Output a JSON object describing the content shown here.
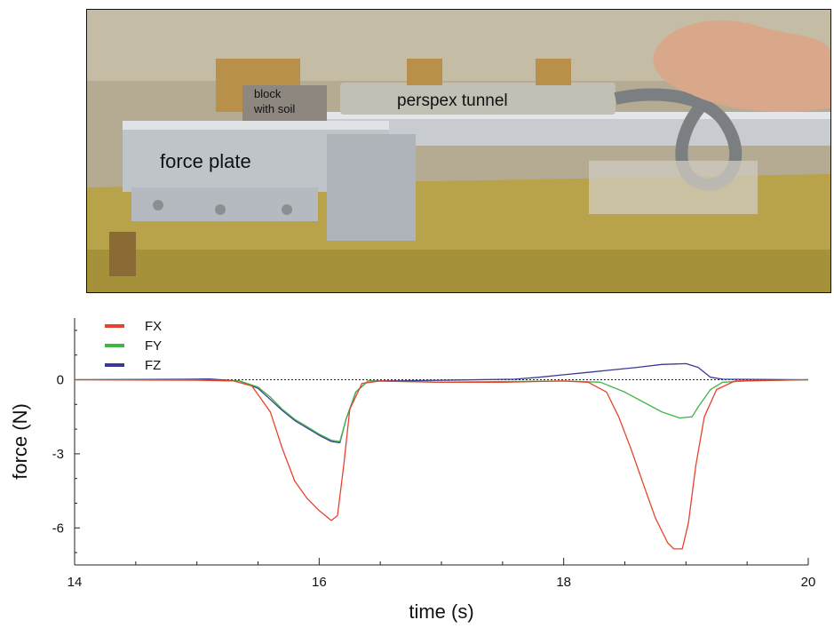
{
  "photo": {
    "labels": {
      "block_line1": "block",
      "block_line2": "with soil",
      "tunnel": "perspex tunnel",
      "force_plate": "force plate"
    }
  },
  "chart_data": {
    "type": "line",
    "xlabel": "time (s)",
    "ylabel": "force (N)",
    "xlim": [
      14,
      20
    ],
    "ylim": [
      -7.5,
      2.5
    ],
    "xticks": [
      14,
      16,
      18,
      20
    ],
    "yticks": [
      0,
      -3,
      -6
    ],
    "grid": false,
    "zero_line": "dashed",
    "legend_position": "top-left",
    "series": [
      {
        "name": "FX",
        "color": "#e8432a",
        "points": [
          [
            14,
            0
          ],
          [
            15,
            -0.02
          ],
          [
            15.3,
            -0.05
          ],
          [
            15.45,
            -0.25
          ],
          [
            15.6,
            -1.3
          ],
          [
            15.7,
            -2.8
          ],
          [
            15.8,
            -4.1
          ],
          [
            15.9,
            -4.8
          ],
          [
            16.0,
            -5.3
          ],
          [
            16.1,
            -5.7
          ],
          [
            16.15,
            -5.5
          ],
          [
            16.2,
            -3.5
          ],
          [
            16.25,
            -1.2
          ],
          [
            16.35,
            -0.15
          ],
          [
            16.5,
            -0.05
          ],
          [
            17,
            -0.1
          ],
          [
            17.5,
            -0.1
          ],
          [
            18.0,
            -0.05
          ],
          [
            18.2,
            -0.1
          ],
          [
            18.35,
            -0.5
          ],
          [
            18.45,
            -1.5
          ],
          [
            18.55,
            -2.8
          ],
          [
            18.65,
            -4.2
          ],
          [
            18.75,
            -5.6
          ],
          [
            18.85,
            -6.6
          ],
          [
            18.9,
            -6.85
          ],
          [
            18.97,
            -6.85
          ],
          [
            19.02,
            -5.8
          ],
          [
            19.08,
            -3.5
          ],
          [
            19.15,
            -1.5
          ],
          [
            19.25,
            -0.4
          ],
          [
            19.4,
            -0.05
          ],
          [
            20,
            0
          ]
        ]
      },
      {
        "name": "FY",
        "color": "#3fb447",
        "points": [
          [
            14,
            0
          ],
          [
            15,
            0
          ],
          [
            15.35,
            -0.05
          ],
          [
            15.5,
            -0.3
          ],
          [
            15.6,
            -0.7
          ],
          [
            15.7,
            -1.2
          ],
          [
            15.8,
            -1.6
          ],
          [
            15.9,
            -1.9
          ],
          [
            16.0,
            -2.2
          ],
          [
            16.1,
            -2.45
          ],
          [
            16.17,
            -2.5
          ],
          [
            16.22,
            -1.6
          ],
          [
            16.3,
            -0.5
          ],
          [
            16.4,
            -0.05
          ],
          [
            17,
            -0.1
          ],
          [
            18.0,
            -0.05
          ],
          [
            18.3,
            -0.1
          ],
          [
            18.5,
            -0.5
          ],
          [
            18.65,
            -0.9
          ],
          [
            18.8,
            -1.3
          ],
          [
            18.95,
            -1.55
          ],
          [
            19.05,
            -1.5
          ],
          [
            19.1,
            -1.1
          ],
          [
            19.2,
            -0.4
          ],
          [
            19.3,
            -0.1
          ],
          [
            19.5,
            -0.05
          ],
          [
            20,
            0
          ]
        ]
      },
      {
        "name": "FZ",
        "color": "#3a3a96",
        "points": [
          [
            14,
            0
          ],
          [
            14.9,
            0.02
          ],
          [
            15.1,
            0.03
          ],
          [
            15.35,
            -0.05
          ],
          [
            15.5,
            -0.35
          ],
          [
            15.6,
            -0.8
          ],
          [
            15.7,
            -1.25
          ],
          [
            15.8,
            -1.65
          ],
          [
            15.9,
            -1.95
          ],
          [
            16.0,
            -2.25
          ],
          [
            16.1,
            -2.5
          ],
          [
            16.17,
            -2.55
          ],
          [
            16.22,
            -1.6
          ],
          [
            16.3,
            -0.5
          ],
          [
            16.4,
            -0.05
          ],
          [
            17,
            -0.02
          ],
          [
            17.6,
            0.02
          ],
          [
            17.8,
            0.1
          ],
          [
            18.0,
            0.2
          ],
          [
            18.2,
            0.3
          ],
          [
            18.4,
            0.4
          ],
          [
            18.6,
            0.5
          ],
          [
            18.8,
            0.62
          ],
          [
            19.0,
            0.65
          ],
          [
            19.1,
            0.5
          ],
          [
            19.2,
            0.1
          ],
          [
            19.3,
            0.02
          ],
          [
            20,
            0
          ]
        ]
      }
    ]
  }
}
